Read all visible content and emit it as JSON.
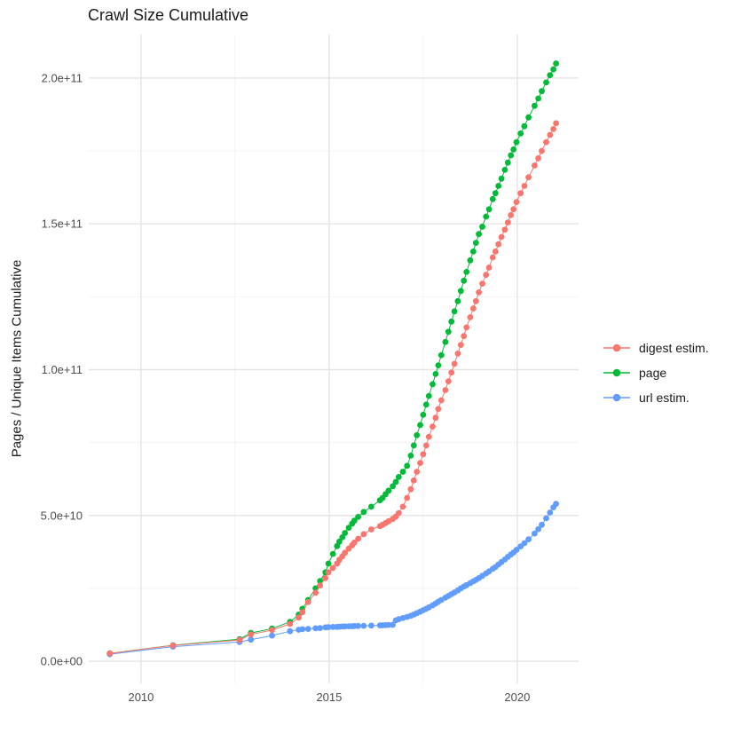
{
  "title": "Crawl Size Cumulative",
  "y_axis_title": "Pages / Unique Items Cumulative",
  "chart_data": {
    "type": "scatter",
    "title": "Crawl Size Cumulative",
    "xlabel": "",
    "ylabel": "Pages / Unique Items Cumulative",
    "legend_position": "right",
    "grid": true,
    "value_unit": "billions of pages (1e9)",
    "xlim": [
      2008.61,
      2021.63
    ],
    "ylim_billions": [
      -7.6,
      214.9
    ],
    "x_ticks": {
      "labels": [
        "2010",
        "2015",
        "2020"
      ],
      "values": [
        2010,
        2015,
        2020
      ]
    },
    "x_minor": [
      2012.5,
      2017.5
    ],
    "y_ticks": {
      "labels": [
        "0.0e+00",
        "5.0e+10",
        "1.0e+11",
        "1.5e+11",
        "2.0e+11"
      ],
      "values": [
        0,
        50,
        100,
        150,
        200
      ]
    },
    "y_minor": [
      25,
      75,
      125,
      175
    ],
    "x": [
      2009.17,
      2010.85,
      2012.62,
      2012.92,
      2013.48,
      2013.96,
      2014.19,
      2014.29,
      2014.44,
      2014.64,
      2014.76,
      2014.9,
      2014.98,
      2015.1,
      2015.21,
      2015.27,
      2015.35,
      2015.42,
      2015.52,
      2015.61,
      2015.67,
      2015.77,
      2015.92,
      2016.12,
      2016.35,
      2016.42,
      2016.5,
      2016.58,
      2016.69,
      2016.77,
      2016.85,
      2016.96,
      2017.07,
      2017.17,
      2017.25,
      2017.33,
      2017.42,
      2017.5,
      2017.58,
      2017.65,
      2017.75,
      2017.83,
      2017.9,
      2017.98,
      2018.09,
      2018.17,
      2018.25,
      2018.33,
      2018.42,
      2018.5,
      2018.58,
      2018.65,
      2018.75,
      2018.83,
      2018.9,
      2018.98,
      2019.07,
      2019.17,
      2019.25,
      2019.35,
      2019.42,
      2019.5,
      2019.58,
      2019.67,
      2019.75,
      2019.83,
      2019.9,
      2019.98,
      2020.09,
      2020.19,
      2020.3,
      2020.46,
      2020.56,
      2020.65,
      2020.77,
      2020.87,
      2020.96,
      2021.03
    ],
    "series": [
      {
        "name": "digest estim.",
        "color": "#F8766D",
        "values": [
          2.7,
          5.4,
          7.3,
          9.2,
          10.7,
          12.8,
          15.0,
          16.8,
          20.3,
          23.5,
          26.0,
          28.5,
          30.5,
          32.0,
          33.5,
          34.8,
          36.0,
          37.2,
          38.6,
          39.8,
          40.7,
          42.0,
          43.6,
          45.2,
          46.3,
          46.8,
          47.4,
          48.0,
          48.8,
          49.6,
          50.8,
          53.0,
          56.0,
          59.0,
          62.0,
          65.0,
          68.0,
          71.0,
          74.0,
          77.0,
          80.5,
          83.5,
          86.5,
          89.5,
          93.0,
          96.0,
          99.0,
          102.0,
          105.5,
          108.5,
          111.5,
          114.5,
          118.0,
          121.0,
          123.5,
          126.5,
          129.5,
          132.5,
          135.0,
          138.5,
          140.5,
          143.0,
          145.5,
          148.0,
          150.5,
          153.0,
          155.0,
          157.5,
          160.5,
          163.0,
          166.0,
          170.0,
          172.5,
          175.0,
          178.0,
          180.5,
          182.5,
          184.5
        ]
      },
      {
        "name": "page",
        "color": "#00BA38",
        "values": [
          2.7,
          5.5,
          7.6,
          9.7,
          11.2,
          13.5,
          16.0,
          18.0,
          21.0,
          25.0,
          27.5,
          30.5,
          33.5,
          36.8,
          39.5,
          41.0,
          42.5,
          44.0,
          45.8,
          47.2,
          48.2,
          49.5,
          51.2,
          53.0,
          55.2,
          56.0,
          57.3,
          58.5,
          60.0,
          61.5,
          63.2,
          65.0,
          67.0,
          70.5,
          74.0,
          77.5,
          81.0,
          84.5,
          88.0,
          91.0,
          95.0,
          98.5,
          101.5,
          105.0,
          109.5,
          113.0,
          116.5,
          120.0,
          123.5,
          127.0,
          130.5,
          133.5,
          137.5,
          140.5,
          143.5,
          146.5,
          149.0,
          152.5,
          155.0,
          158.5,
          160.5,
          163.0,
          165.5,
          168.5,
          171.0,
          173.5,
          175.5,
          178.0,
          181.0,
          183.5,
          186.5,
          190.5,
          193.0,
          195.5,
          198.5,
          201.0,
          203.0,
          205.0
        ]
      },
      {
        "name": "url estim.",
        "color": "#619CFF",
        "values": [
          2.4,
          5.0,
          6.6,
          7.4,
          8.8,
          10.3,
          10.8,
          11.0,
          11.1,
          11.3,
          11.4,
          11.6,
          11.7,
          11.75,
          11.8,
          11.85,
          11.9,
          11.95,
          12.0,
          12.0,
          12.05,
          12.1,
          12.15,
          12.2,
          12.3,
          12.35,
          12.4,
          12.45,
          12.5,
          14.0,
          14.4,
          14.8,
          15.2,
          15.6,
          16.0,
          16.5,
          17.0,
          17.5,
          18.0,
          18.5,
          19.2,
          19.8,
          20.4,
          21.0,
          21.8,
          22.4,
          23.0,
          23.6,
          24.3,
          25.0,
          25.6,
          26.1,
          26.8,
          27.4,
          27.9,
          28.5,
          29.3,
          30.1,
          30.8,
          31.7,
          32.3,
          33.2,
          34.0,
          34.9,
          35.8,
          36.6,
          37.3,
          38.2,
          39.4,
          40.5,
          41.8,
          43.8,
          45.3,
          46.8,
          49.0,
          51.0,
          52.8,
          54.0
        ]
      }
    ]
  },
  "style": {
    "major_grid_color": "#E4E4E4",
    "minor_grid_color": "#F2F2F2",
    "tick_label_color": "#4D4D4D",
    "text_color": "#1a1a1a",
    "background": "#FFFFFF"
  }
}
